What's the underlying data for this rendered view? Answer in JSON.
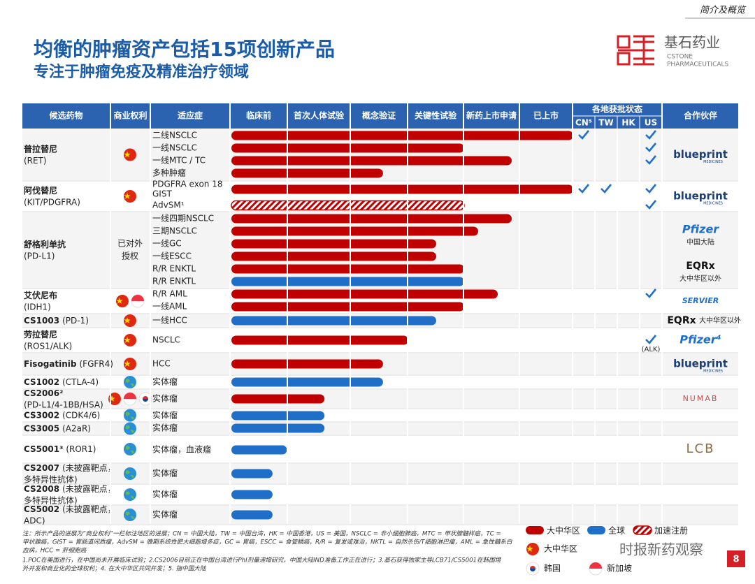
{
  "header": {
    "section": "简介及概览",
    "title": "均衡的肿瘤资产包括15项创新产品",
    "subtitle": "专注于肿瘤免疫及精准治疗领域"
  },
  "logo": {
    "name": "基石药业",
    "en1": "CSTONE",
    "en2": "PHARMACEUTICALS"
  },
  "table": {
    "columns": [
      "候选药物",
      "商业权利",
      "适应症",
      "临床前",
      "首次人体试验",
      "概念验证",
      "关键性试验",
      "新药上市申请",
      "已上市"
    ],
    "approval_header": "各地获批状态",
    "regions": [
      "CN⁵",
      "TW",
      "HK",
      "US"
    ],
    "partner_header": "合作伙伴",
    "colors": {
      "cn": "#c00000",
      "global": "#1f6fc8",
      "accel": "#c00000"
    },
    "drugs": [
      {
        "name": "普拉替尼",
        "target2": "(RET)",
        "rights": [
          "cn"
        ],
        "indications": [
          {
            "label": "二线NSCLC",
            "progress": 6.0,
            "region": "cn",
            "approvals": [
              true,
              false,
              false,
              true
            ]
          },
          {
            "label": "一线NSCLC",
            "progress": 4.0,
            "region": "cn",
            "approvals": [
              false,
              false,
              false,
              true
            ]
          },
          {
            "label": "一线MTC / TC",
            "progress": 4.85,
            "region": "cn",
            "approvals": [
              false,
              false,
              false,
              true
            ]
          },
          {
            "label": "多种肿瘤",
            "progress": 2.56,
            "region": "cn",
            "approvals": [
              false,
              false,
              false,
              false
            ]
          }
        ],
        "partners": [
          {
            "logo": "blueprint",
            "sub": "MEDICINES"
          }
        ]
      },
      {
        "name": "阿伐替尼",
        "target2": "(KIT/PDGFRA)",
        "rights": [
          "cn"
        ],
        "indications": [
          {
            "label": "PDGFRA exon 18",
            "cont": "GIST",
            "progress": 6.0,
            "region": "cn",
            "approvals": [
              true,
              true,
              false,
              true
            ]
          },
          {
            "label": "AdvSM¹",
            "progress": 4.0,
            "region": "accel",
            "approvals": [
              false,
              false,
              false,
              true
            ]
          }
        ],
        "partners": [
          {
            "logo": "blueprint",
            "sub": "MEDICINES"
          }
        ]
      },
      {
        "name": "舒格利单抗",
        "target2": "(PD-L1)",
        "licensed": [
          "已对外",
          "授权"
        ],
        "rights": [],
        "indications": [
          {
            "label": "一线四期NSCLC",
            "progress": 4.85,
            "region": "cn",
            "approvals": [
              false,
              false,
              false,
              false
            ]
          },
          {
            "label": "三期NSCLC",
            "progress": 4.25,
            "region": "cn",
            "approvals": [
              false,
              false,
              false,
              false
            ]
          },
          {
            "label": "一线GC",
            "progress": 3.5,
            "region": "cn",
            "approvals": [
              false,
              false,
              false,
              false
            ]
          },
          {
            "label": "一线ESCC",
            "progress": 3.5,
            "region": "cn",
            "approvals": [
              false,
              false,
              false,
              false
            ]
          },
          {
            "label": "R/R ENKTL",
            "progress": 4.0,
            "region": "cn",
            "approvals": [
              false,
              false,
              false,
              false
            ]
          },
          {
            "label": "R/R ENKTL",
            "progress": 4.0,
            "region": "global",
            "approvals": [
              false,
              false,
              false,
              false
            ]
          }
        ],
        "partners": [
          {
            "logo": "Pfizer",
            "note": "中国大陆"
          },
          {
            "logo": "EQRx",
            "note": "大中华区以外"
          }
        ]
      },
      {
        "name": "艾伏尼布",
        "target2": "(IDH1)",
        "rights": [
          "cn",
          "sg"
        ],
        "indications": [
          {
            "label": "R/R AML",
            "progress": 4.6,
            "region": "cn",
            "approvals": [
              false,
              false,
              false,
              true
            ]
          },
          {
            "label": "一线AML",
            "progress": 4.0,
            "region": "cn",
            "approvals": [
              false,
              false,
              false,
              false
            ]
          }
        ],
        "partners": [
          {
            "logo": "SERVIER"
          }
        ]
      },
      {
        "name": "CS1003",
        "target": "(PD-1)",
        "rights": [
          "cn"
        ],
        "indications": [
          {
            "label": "一线HCC",
            "progress": 3.5,
            "region": "global",
            "approvals": [
              false,
              false,
              false,
              false
            ]
          }
        ],
        "partners": [
          {
            "logo": "EQRx",
            "note": "大中华区以外"
          }
        ]
      },
      {
        "name": "劳拉替尼",
        "target2": "(ROS1/ALK)",
        "rights": [
          "cn"
        ],
        "indications": [
          {
            "label": "NSCLC",
            "progress": 3.0,
            "region": "cn",
            "approvals": [
              false,
              false,
              false,
              true
            ],
            "approval_note": "(ALK)"
          }
        ],
        "partners": [
          {
            "logo": "Pfizer⁴"
          }
        ]
      },
      {
        "name": "Fisogatinib",
        "target": "(FGFR4)",
        "rights": [
          "cn"
        ],
        "indications": [
          {
            "label": "HCC",
            "progress": 2.56,
            "region": "cn",
            "approvals": [
              false,
              false,
              false,
              false
            ]
          }
        ],
        "partners": [
          {
            "logo": "blueprint",
            "sub": "MEDICINES"
          }
        ]
      },
      {
        "name": "CS1002",
        "target": "(CTLA-4)",
        "rights": [
          "globe"
        ],
        "indications": [
          {
            "label": "实体瘤",
            "progress": 2.56,
            "region": "global",
            "approvals": [
              false,
              false,
              false,
              false
            ]
          }
        ],
        "partners": []
      },
      {
        "name": "CS2006²",
        "target2": "(PD-L1/4-1BB/HSA)",
        "rights": [
          "cn",
          "sg",
          "kr"
        ],
        "indications": [
          {
            "label": "实体瘤",
            "progress": 1.58,
            "region": "cn",
            "approvals": [
              false,
              false,
              false,
              false
            ]
          }
        ],
        "partners": [
          {
            "logo": "NUMAB"
          }
        ]
      },
      {
        "name": "CS3002",
        "target": "(CDK4/6)",
        "rights": [
          "globe"
        ],
        "indications": [
          {
            "label": "实体瘤",
            "progress": 1.58,
            "region": "global",
            "approvals": [
              false,
              false,
              false,
              false
            ]
          }
        ],
        "partners": []
      },
      {
        "name": "CS3005",
        "target": "(A2aR)",
        "rights": [
          "globe"
        ],
        "indications": [
          {
            "label": "实体瘤",
            "progress": 1.58,
            "region": "global",
            "approvals": [
              false,
              false,
              false,
              false
            ]
          }
        ],
        "partners": []
      },
      {
        "name": "CS5001³",
        "target": "(ROR1)",
        "rights": [
          "globe"
        ],
        "indications": [
          {
            "label": "实体瘤，血液瘤",
            "progress": 0.98,
            "region": "global",
            "approvals": [
              false,
              false,
              false,
              false
            ]
          }
        ],
        "partners": [
          {
            "logo": "LCB"
          }
        ]
      },
      {
        "name": "CS2007",
        "target": "(未披露靶点，",
        "target2": "多特异性抗体)",
        "rights": [
          "globe"
        ],
        "indications": [
          {
            "label": "实体瘤",
            "progress": 0.73,
            "region": "global",
            "approvals": [
              false,
              false,
              false,
              false
            ]
          }
        ],
        "partners": []
      },
      {
        "name": "CS2008",
        "target": "(未披露靶点，",
        "target2": "多特异性抗体)",
        "rights": [
          "globe"
        ],
        "indications": [
          {
            "label": "实体瘤",
            "progress": 0.73,
            "region": "global",
            "approvals": [
              false,
              false,
              false,
              false
            ]
          }
        ],
        "partners": []
      },
      {
        "name": "CS5002",
        "target": "(未披露靶点，",
        "target2": "ADC)",
        "rights": [
          "globe"
        ],
        "indications": [
          {
            "label": "实体瘤",
            "progress": 0.73,
            "region": "global",
            "approvals": [
              false,
              false,
              false,
              false
            ]
          }
        ],
        "partners": []
      }
    ]
  },
  "legend": {
    "bars": [
      {
        "label": "大中华区",
        "region": "cn"
      },
      {
        "label": "全球",
        "region": "global"
      },
      {
        "label": "加速注册",
        "region": "accel"
      }
    ],
    "flags": [
      {
        "label": "大中华区",
        "flag": "cn"
      },
      {
        "label": "韩国",
        "flag": "kr"
      },
      {
        "label": "新加坡",
        "flag": "sg"
      }
    ]
  },
  "footnotes": [
    "注：所示产品的进展为“商业权利”一栏标注地区的进展；CN = 中国大陆，TW = 中国台湾，HK = 中国香港，US = 美国，NSCLC = 非小细胞肺癌，MTC = 甲状腺髓样癌，TC =",
    "甲状腺癌，GIST = 胃肠道间质瘤，AdvSM = 晚期系统性肥大细胞增多症，GC = 胃癌，ESCC = 食管鳞癌，R/R = 复发或难治，NKTL = 自然杀伤/T细胞淋巴瘤，AML = 急性髓系白",
    "血病，HCC = 肝细胞癌",
    "1.POC在美国进行，在中国尚未开展临床试验；2.CS2006目前正在中国台湾进行PhI剂量递增研究，中国大陆IND准备工作正在进行；3.基石获得独家主导LCB71/CS5001在韩国境",
    "外开发和商业化的全球权利；4. 在大中华区共同开发；5. 指中国大陆"
  ],
  "watermark": "时报新药观察",
  "page_number": 8
}
